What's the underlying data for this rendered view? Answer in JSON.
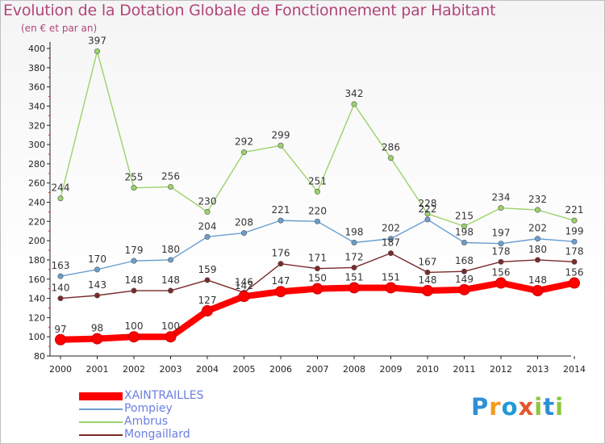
{
  "title": "Evolution de la Dotation Globale de Fonctionnement par Habitant",
  "subtitle": "(en € et par an)",
  "brand": {
    "text": "Proxiti",
    "colors": [
      "#2e8fd6",
      "#f39a1e",
      "#1f9ad6",
      "#e8542a",
      "#8cc63f",
      "#2e8fd6",
      "#8cc63f"
    ]
  },
  "chart_data": {
    "type": "line",
    "x": [
      "2000",
      "2001",
      "2002",
      "2003",
      "2004",
      "2005",
      "2006",
      "2007",
      "2008",
      "2009",
      "2010",
      "2011",
      "2012",
      "2013",
      "2014"
    ],
    "ylim": [
      80,
      400
    ],
    "yticks": [
      80,
      100,
      120,
      140,
      160,
      180,
      200,
      220,
      240,
      260,
      280,
      300,
      320,
      340,
      360,
      380,
      400
    ],
    "grid": false,
    "legend_position": "bottom-left",
    "series": [
      {
        "name": "Ambrus",
        "color": "#9bd36a",
        "values": [
          244,
          397,
          255,
          256,
          230,
          292,
          299,
          251,
          342,
          286,
          228,
          215,
          234,
          232,
          221
        ]
      },
      {
        "name": "Pompiey",
        "color": "#6a9fd0",
        "values": [
          163,
          170,
          179,
          180,
          204,
          208,
          221,
          220,
          198,
          202,
          222,
          198,
          197,
          202,
          199
        ]
      },
      {
        "name": "Mongaillard",
        "color": "#7a2a2a",
        "values": [
          140,
          143,
          148,
          148,
          159,
          146,
          176,
          171,
          172,
          187,
          167,
          168,
          178,
          180,
          178
        ]
      },
      {
        "name": "XAINTRAILLES",
        "color": "#ff0000",
        "values": [
          97,
          98,
          100,
          100,
          127,
          142,
          147,
          150,
          151,
          151,
          148,
          149,
          156,
          148,
          156
        ]
      }
    ],
    "legend_order": [
      "XAINTRAILLES",
      "Pompiey",
      "Ambrus",
      "Mongaillard"
    ]
  }
}
